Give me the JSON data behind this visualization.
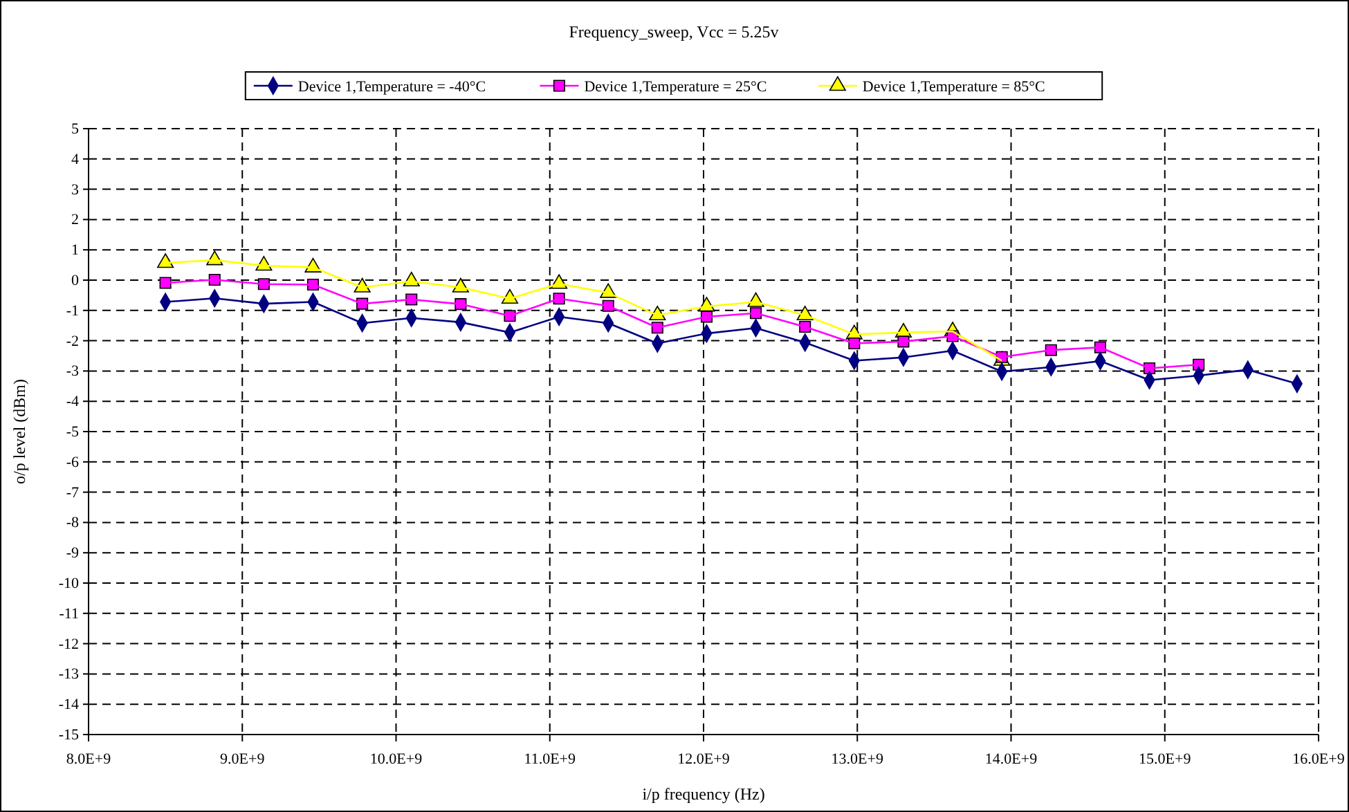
{
  "chart_data": {
    "type": "line",
    "title": "Frequency_sweep, Vcc = 5.25v",
    "xlabel": "i/p frequency (Hz)",
    "ylabel": "o/p level (dBm)",
    "x": [
      8500000000.0,
      8820000000.0,
      9140000000.0,
      9460000000.0,
      9780000000.0,
      10100000000.0,
      10420000000.0,
      10740000000.0,
      11060000000.0,
      11380000000.0,
      11700000000.0,
      12020000000.0,
      12340000000.0,
      12660000000.0,
      12980000000.0,
      13300000000.0,
      13620000000.0,
      13940000000.0,
      14260000000.0,
      14580000000.0,
      14900000000.0,
      15220000000.0,
      15540000000.0,
      15860000000.0
    ],
    "series": [
      {
        "name": "Device 1,Temperature = -40°C",
        "color": "#000080",
        "marker": "diamond",
        "values": [
          -0.72,
          -0.6,
          -0.78,
          -0.72,
          -1.42,
          -1.25,
          -1.39,
          -1.73,
          -1.21,
          -1.42,
          -2.09,
          -1.76,
          -1.58,
          -2.06,
          -2.66,
          -2.55,
          -2.33,
          -3.02,
          -2.87,
          -2.67,
          -3.3,
          -3.15,
          -2.96,
          -3.42
        ]
      },
      {
        "name": "Device 1,Temperature = 25°C",
        "color": "#ff00ff",
        "marker": "square",
        "values": [
          -0.09,
          0.01,
          -0.13,
          -0.15,
          -0.78,
          -0.64,
          -0.79,
          -1.18,
          -0.61,
          -0.85,
          -1.57,
          -1.21,
          -1.09,
          -1.54,
          -2.09,
          -2.03,
          -1.85,
          -2.54,
          -2.31,
          -2.22,
          -2.91,
          -2.79,
          null,
          null
        ]
      },
      {
        "name": "Device 1,Temperature = 85°C",
        "color": "#ffff00",
        "marker": "triangle",
        "values": [
          0.57,
          0.66,
          0.48,
          0.42,
          -0.24,
          -0.04,
          -0.24,
          -0.61,
          -0.12,
          -0.42,
          -1.16,
          -0.87,
          -0.72,
          -1.16,
          -1.79,
          -1.73,
          -1.69,
          -2.66,
          null,
          null,
          null,
          null,
          null,
          null
        ]
      }
    ],
    "xlim": [
      8000000000.0,
      16000000000.0
    ],
    "xticks": [
      {
        "value": 8000000000.0,
        "label": "8.0E+9"
      },
      {
        "value": 9000000000.0,
        "label": "9.0E+9"
      },
      {
        "value": 10000000000.0,
        "label": "10.0E+9"
      },
      {
        "value": 11000000000.0,
        "label": "11.0E+9"
      },
      {
        "value": 12000000000.0,
        "label": "12.0E+9"
      },
      {
        "value": 13000000000.0,
        "label": "13.0E+9"
      },
      {
        "value": 14000000000.0,
        "label": "14.0E+9"
      },
      {
        "value": 15000000000.0,
        "label": "15.0E+9"
      },
      {
        "value": 16000000000.0,
        "label": "16.0E+9"
      }
    ],
    "ylim": [
      -15,
      5
    ],
    "yticks": [
      -15,
      -14,
      -13,
      -12,
      -11,
      -10,
      -9,
      -8,
      -7,
      -6,
      -5,
      -4,
      -3,
      -2,
      -1,
      0,
      1,
      2,
      3,
      4,
      5
    ],
    "grid": true,
    "legend": "top",
    "line_style": "solid"
  }
}
